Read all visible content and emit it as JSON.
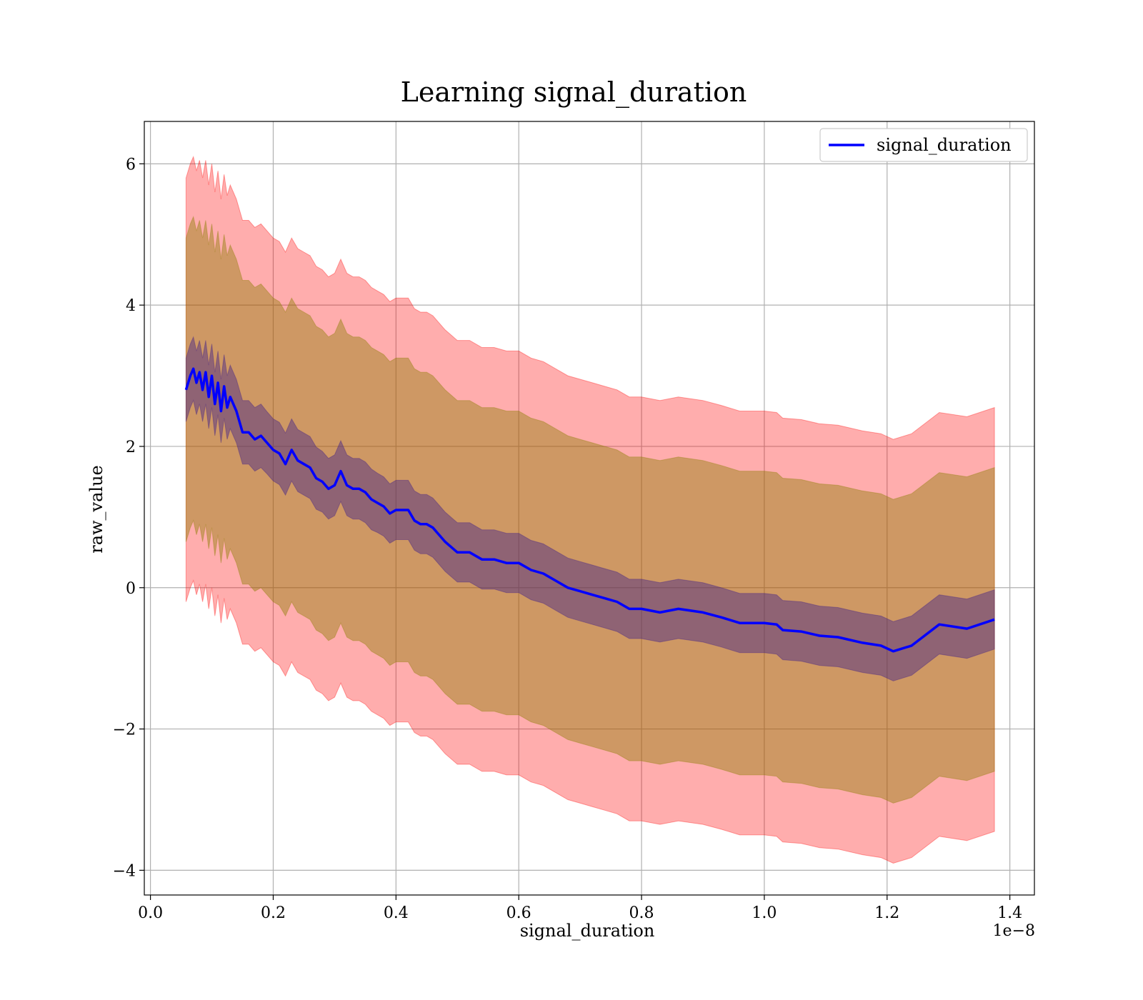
{
  "chart_data": {
    "type": "line",
    "title": "Learning signal_duration",
    "xlabel": "signal_duration",
    "ylabel": "raw_value",
    "x_offset_label": "1e−8",
    "xlim": [
      -0.01,
      1.44
    ],
    "ylim": [
      -4.35,
      6.6
    ],
    "x_ticks": [
      0.0,
      0.2,
      0.4,
      0.6,
      0.8,
      1.0,
      1.2,
      1.4
    ],
    "x_tick_labels": [
      "0.0",
      "0.2",
      "0.4",
      "0.6",
      "0.8",
      "1.0",
      "1.2",
      "1.4"
    ],
    "y_ticks": [
      6,
      4,
      2,
      0,
      -2,
      -4
    ],
    "y_tick_labels": [
      "6",
      "4",
      "2",
      "0",
      "−2",
      "−4"
    ],
    "grid": true,
    "legend_position": "top-right",
    "colors": {
      "line": "#0000ff",
      "band_outer": "#ff0000",
      "band_middle": "#8b7d00",
      "band_inner": "#3a1a8a"
    },
    "series": [
      {
        "name": "signal_duration",
        "x": [
          0.058,
          0.065,
          0.07,
          0.075,
          0.08,
          0.085,
          0.09,
          0.095,
          0.1,
          0.105,
          0.11,
          0.115,
          0.12,
          0.125,
          0.13,
          0.14,
          0.15,
          0.16,
          0.17,
          0.18,
          0.19,
          0.2,
          0.21,
          0.22,
          0.23,
          0.24,
          0.25,
          0.26,
          0.27,
          0.28,
          0.29,
          0.3,
          0.31,
          0.32,
          0.33,
          0.34,
          0.35,
          0.36,
          0.37,
          0.38,
          0.39,
          0.4,
          0.41,
          0.42,
          0.43,
          0.44,
          0.45,
          0.46,
          0.47,
          0.48,
          0.5,
          0.52,
          0.54,
          0.56,
          0.58,
          0.6,
          0.62,
          0.64,
          0.66,
          0.68,
          0.7,
          0.72,
          0.74,
          0.76,
          0.78,
          0.8,
          0.83,
          0.86,
          0.9,
          0.93,
          0.96,
          0.98,
          1.0,
          1.02,
          1.03,
          1.06,
          1.09,
          1.12,
          1.16,
          1.19,
          1.21,
          1.24,
          1.285,
          1.33,
          1.375
        ],
        "y": [
          2.8,
          3.0,
          3.1,
          2.9,
          3.05,
          2.8,
          3.05,
          2.7,
          3.0,
          2.6,
          2.9,
          2.5,
          2.85,
          2.55,
          2.7,
          2.5,
          2.2,
          2.2,
          2.1,
          2.15,
          2.05,
          1.95,
          1.9,
          1.75,
          1.95,
          1.8,
          1.75,
          1.7,
          1.55,
          1.5,
          1.4,
          1.45,
          1.65,
          1.45,
          1.4,
          1.4,
          1.35,
          1.25,
          1.2,
          1.15,
          1.05,
          1.1,
          1.1,
          1.1,
          0.95,
          0.9,
          0.9,
          0.85,
          0.75,
          0.65,
          0.5,
          0.5,
          0.4,
          0.4,
          0.35,
          0.35,
          0.25,
          0.2,
          0.1,
          0.0,
          -0.05,
          -0.1,
          -0.15,
          -0.2,
          -0.3,
          -0.3,
          -0.35,
          -0.3,
          -0.35,
          -0.42,
          -0.5,
          -0.5,
          -0.5,
          -0.52,
          -0.6,
          -0.62,
          -0.68,
          -0.7,
          -0.78,
          -0.82,
          -0.9,
          -0.82,
          -0.52,
          -0.58,
          -0.45
        ],
        "inner_band": [
          0.45,
          0.45,
          0.45,
          0.45,
          0.45,
          0.45,
          0.45,
          0.45,
          0.45,
          0.45,
          0.45,
          0.45,
          0.45,
          0.45,
          0.45,
          0.45,
          0.45,
          0.45,
          0.45,
          0.45,
          0.44,
          0.44,
          0.44,
          0.44,
          0.44,
          0.44,
          0.44,
          0.44,
          0.44,
          0.43,
          0.43,
          0.43,
          0.43,
          0.43,
          0.43,
          0.43,
          0.43,
          0.43,
          0.42,
          0.42,
          0.42,
          0.42,
          0.42,
          0.42,
          0.42,
          0.42,
          0.42,
          0.42,
          0.42,
          0.42,
          0.42,
          0.42,
          0.42,
          0.42,
          0.42,
          0.42,
          0.42,
          0.42,
          0.42,
          0.42,
          0.42,
          0.42,
          0.42,
          0.42,
          0.42,
          0.42,
          0.42,
          0.42,
          0.42,
          0.42,
          0.42,
          0.42,
          0.42,
          0.42,
          0.42,
          0.42,
          0.42,
          0.42,
          0.42,
          0.42,
          0.42,
          0.42,
          0.42,
          0.42,
          0.42
        ],
        "middle_band": [
          2.15,
          2.15,
          2.15,
          2.15,
          2.15,
          2.15,
          2.15,
          2.15,
          2.15,
          2.15,
          2.15,
          2.15,
          2.15,
          2.15,
          2.15,
          2.15,
          2.15,
          2.15,
          2.15,
          2.15,
          2.15,
          2.15,
          2.15,
          2.15,
          2.15,
          2.15,
          2.15,
          2.15,
          2.15,
          2.15,
          2.15,
          2.15,
          2.15,
          2.15,
          2.15,
          2.15,
          2.15,
          2.15,
          2.15,
          2.15,
          2.15,
          2.15,
          2.15,
          2.15,
          2.15,
          2.15,
          2.15,
          2.15,
          2.15,
          2.15,
          2.15,
          2.15,
          2.15,
          2.15,
          2.15,
          2.15,
          2.15,
          2.15,
          2.15,
          2.15,
          2.15,
          2.15,
          2.15,
          2.15,
          2.15,
          2.15,
          2.15,
          2.15,
          2.15,
          2.15,
          2.15,
          2.15,
          2.15,
          2.15,
          2.15,
          2.15,
          2.15,
          2.15,
          2.15,
          2.15,
          2.15,
          2.15,
          2.15,
          2.15,
          2.15
        ],
        "outer_band": [
          3.0,
          3.0,
          3.0,
          3.0,
          3.0,
          3.0,
          3.0,
          3.0,
          3.0,
          3.0,
          3.0,
          3.0,
          3.0,
          3.0,
          3.0,
          3.0,
          3.0,
          3.0,
          3.0,
          3.0,
          3.0,
          3.0,
          3.0,
          3.0,
          3.0,
          3.0,
          3.0,
          3.0,
          3.0,
          3.0,
          3.0,
          3.0,
          3.0,
          3.0,
          3.0,
          3.0,
          3.0,
          3.0,
          3.0,
          3.0,
          3.0,
          3.0,
          3.0,
          3.0,
          3.0,
          3.0,
          3.0,
          3.0,
          3.0,
          3.0,
          3.0,
          3.0,
          3.0,
          3.0,
          3.0,
          3.0,
          3.0,
          3.0,
          3.0,
          3.0,
          3.0,
          3.0,
          3.0,
          3.0,
          3.0,
          3.0,
          3.0,
          3.0,
          3.0,
          3.0,
          3.0,
          3.0,
          3.0,
          3.0,
          3.0,
          3.0,
          3.0,
          3.0,
          3.0,
          3.0,
          3.0,
          3.0,
          3.0,
          3.0,
          3.0
        ]
      }
    ]
  }
}
